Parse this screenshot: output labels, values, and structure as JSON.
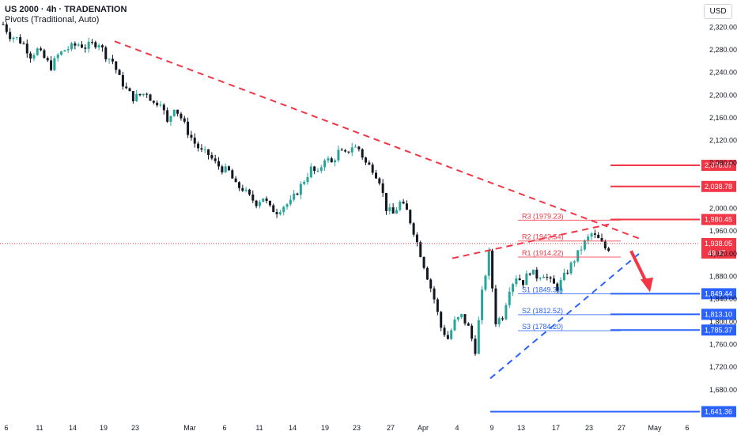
{
  "header": {
    "title": "US 2000 · 4h · TRADENATION",
    "subtitle": "Pivots (Traditional, Auto)",
    "currency": "USD"
  },
  "colors": {
    "up": "#26a69a",
    "down": "#131722",
    "resistance": "#f23645",
    "support": "#2962ff",
    "current": "#f23645"
  },
  "chart_data": {
    "type": "candlestick",
    "y_ticks": [
      "2,320.00",
      "2,280.00",
      "2,240.00",
      "2,200.00",
      "2,160.00",
      "2,120.00",
      "2,080.00",
      "2,000.00",
      "1,960.00",
      "1,920.00",
      "1,880.00",
      "1,840.00",
      "1,800.00",
      "1,760.00",
      "1,720.00",
      "1,680.00"
    ],
    "y_tick_values": [
      2320,
      2280,
      2240,
      2200,
      2160,
      2120,
      2080,
      2000,
      1960,
      1920,
      1880,
      1840,
      1800,
      1760,
      1720,
      1680
    ],
    "x_ticks": [
      "6",
      "11",
      "14",
      "19",
      "23",
      "Mar",
      "6",
      "11",
      "14",
      "19",
      "23",
      "27",
      "Apr",
      "4",
      "9",
      "13",
      "17",
      "23",
      "27",
      "May",
      "6"
    ],
    "ylim": [
      1635,
      2340
    ],
    "price_path": [
      2325,
      2305,
      2300,
      2290,
      2270,
      2280,
      2265,
      2250,
      2270,
      2280,
      2285,
      2290,
      2285,
      2290,
      2292,
      2270,
      2260,
      2230,
      2210,
      2195,
      2200,
      2205,
      2185,
      2190,
      2150,
      2180,
      2160,
      2135,
      2115,
      2100,
      2095,
      2080,
      2070,
      2065,
      2040,
      2035,
      2020,
      2010,
      2020,
      2000,
      1995,
      2005,
      2010,
      2030,
      2050,
      2070,
      2060,
      2090,
      2080,
      2100,
      2095,
      2110,
      2105,
      2080,
      2070,
      2050,
      2000,
      1990,
      2010,
      1995,
      1960,
      1920,
      1880,
      1840,
      1790,
      1770,
      1800,
      1810,
      1790,
      1750,
      1850,
      1920,
      1800,
      1810,
      1860,
      1880,
      1870,
      1890,
      1880,
      1885,
      1870,
      1860,
      1880,
      1900,
      1920,
      1940,
      1955,
      1945,
      1930
    ],
    "dates_index": [
      "6",
      "11",
      "14",
      "19",
      "23",
      "Mar",
      "6",
      "11",
      "14",
      "19",
      "23",
      "27",
      "Apr",
      "4",
      "9",
      "13",
      "17",
      "23",
      "27",
      "May",
      "6"
    ],
    "pivots": [
      {
        "label": "R3 (1979.23)",
        "value": 1979.23,
        "type": "resistance"
      },
      {
        "label": "R2 (1942.54)",
        "value": 1942.54,
        "type": "resistance"
      },
      {
        "label": "R1 (1914.22)",
        "value": 1914.22,
        "type": "resistance"
      },
      {
        "label": "S1 (1849.31)",
        "value": 1849.31,
        "type": "support"
      },
      {
        "label": "S2 (1812.52)",
        "value": 1812.52,
        "type": "support"
      },
      {
        "label": "S3 (1784.20)",
        "value": 1784.2,
        "type": "support"
      }
    ],
    "levels": [
      {
        "value": 2076.07,
        "label": "2,076.07",
        "type": "resistance"
      },
      {
        "value": 2038.78,
        "label": "2,038.78",
        "type": "resistance"
      },
      {
        "value": 1980.45,
        "label": "1,980.45",
        "type": "resistance"
      },
      {
        "value": 1849.44,
        "label": "1,849.44",
        "type": "support"
      },
      {
        "value": 1813.1,
        "label": "1,813.10",
        "type": "support"
      },
      {
        "value": 1785.37,
        "label": "1,785.37",
        "type": "support"
      },
      {
        "value": 1641.36,
        "label": "1,641.36",
        "type": "support"
      }
    ],
    "current_price": {
      "value": 1938.05,
      "label": "1,938.05",
      "countdown": "49:47"
    }
  }
}
